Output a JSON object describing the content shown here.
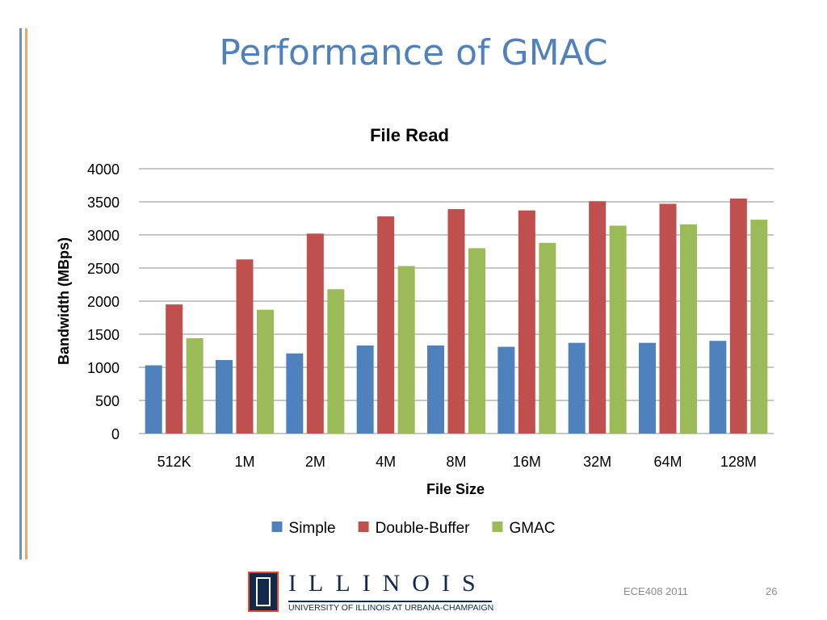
{
  "slide": {
    "title": "Performance of GMAC",
    "footer_course": "ECE408 2011",
    "page_number": "26"
  },
  "logo": {
    "wordmark": "ILLINOIS",
    "subtitle": "UNIVERSITY OF ILLINOIS AT URBANA-CHAMPAIGN"
  },
  "chart_data": {
    "type": "bar",
    "title": "File Read",
    "xlabel": "File Size",
    "ylabel": "Bandwidth (MBps)",
    "ylim": [
      0,
      4000
    ],
    "yticks": [
      0,
      500,
      1000,
      1500,
      2000,
      2500,
      3000,
      3500,
      4000
    ],
    "grid": true,
    "legend_position": "bottom",
    "categories": [
      "512K",
      "1M",
      "2M",
      "4M",
      "8M",
      "16M",
      "32M",
      "64M",
      "128M"
    ],
    "series": [
      {
        "name": "Simple",
        "color": "#4f81bd",
        "values": [
          1030,
          1110,
          1210,
          1330,
          1330,
          1310,
          1370,
          1370,
          1400
        ]
      },
      {
        "name": "Double-Buffer",
        "color": "#c0504d",
        "values": [
          1950,
          2630,
          3020,
          3280,
          3390,
          3370,
          3510,
          3470,
          3550
        ]
      },
      {
        "name": "GMAC",
        "color": "#9bbb59",
        "values": [
          1440,
          1870,
          2180,
          2530,
          2800,
          2880,
          3140,
          3160,
          3230
        ]
      }
    ]
  }
}
